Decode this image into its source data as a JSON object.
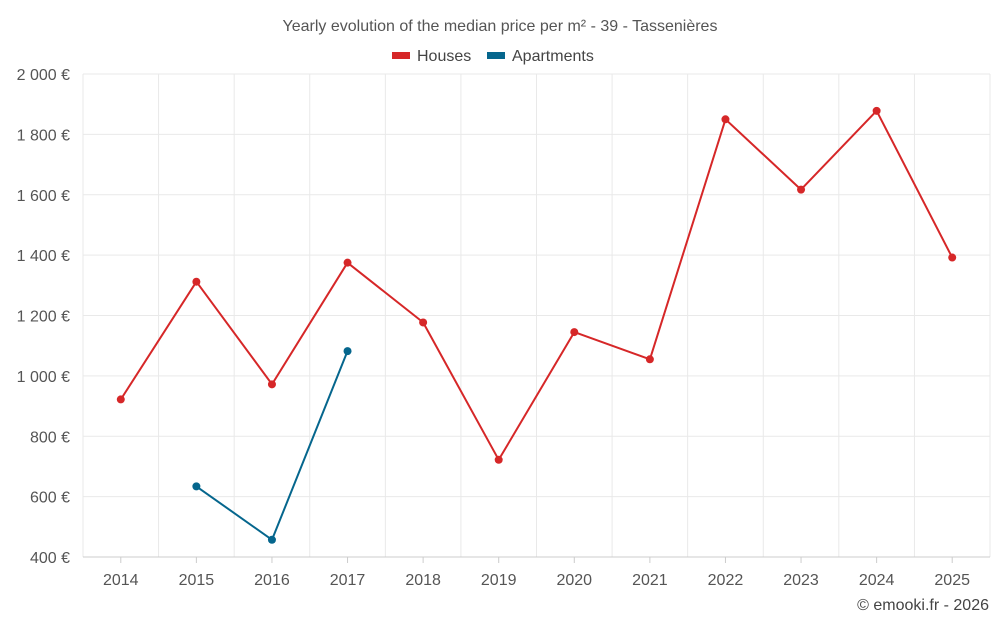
{
  "chart_data": {
    "type": "line",
    "title": "Yearly evolution of the median price per m² - 39 - Tassenières",
    "categories": [
      "2014",
      "2015",
      "2016",
      "2017",
      "2018",
      "2019",
      "2020",
      "2021",
      "2022",
      "2023",
      "2024",
      "2025"
    ],
    "series": [
      {
        "name": "Houses",
        "color": "#d62728",
        "values": [
          922,
          1312,
          972,
          1375,
          1177,
          722,
          1145,
          1055,
          1850,
          1617,
          1878,
          1392
        ]
      },
      {
        "name": "Apartments",
        "color": "#05668d",
        "values": [
          null,
          634,
          457,
          1082,
          null,
          null,
          null,
          null,
          null,
          null,
          null,
          null
        ]
      }
    ],
    "ylim": [
      400,
      2000
    ],
    "yticks": [
      400,
      600,
      800,
      1000,
      1200,
      1400,
      1600,
      1800,
      2000
    ],
    "ytick_labels": [
      "400 €",
      "600 €",
      "800 €",
      "1 000 €",
      "1 200 €",
      "1 400 €",
      "1 600 €",
      "1 800 €",
      "2 000 €"
    ],
    "xlabel": "",
    "ylabel": "",
    "grid": true,
    "legend": "top-center"
  },
  "credit": "© emooki.fr - 2026"
}
